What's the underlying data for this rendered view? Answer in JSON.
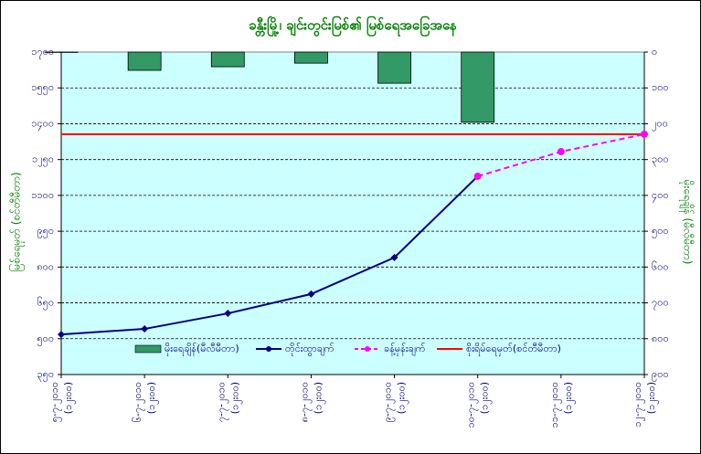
{
  "chart_data": {
    "type": "combo",
    "title": "ခန္တီးမြို့၊ ချင်းတွင်းမြစ်၏ မြစ်ရေအခြေအနေ",
    "ylabel": "မြစ်ရေမှတ် (စင်တီမီတာ)",
    "y2label": "မိုးရေချိန် (မီလီမီတာ)",
    "categories": [
      "၅-၇-၂၀၁၀ (၁၂း၀၀)",
      "၆-၇-၂၀၁၀ (၁၂း၀၀)",
      "၇-၇-၂၀၁၀ (၁၂း၀၀)",
      "၈-၇-၂၀၁၀ (၁၂း၀၀)",
      "၉-၇-၂၀၁၀ (၁၂း၀၀)",
      "၁၀-၇-၂၀၁၀ (၁၂း၀၀)",
      "၁၁-၇-၂၀၁၀ (၁၂း၀၀)",
      "၁၂-၇-၂၀၁၀ (၁၂း၀၀)"
    ],
    "series": [
      {
        "name": "မိုးရေချိန်(မီလီမီတာ)",
        "kind": "bar",
        "axis": "y2",
        "color": "#339966",
        "values": [
          1,
          51,
          41,
          31,
          87,
          196,
          null,
          null
        ]
      },
      {
        "name": "တိုင်းထွာချက်",
        "kind": "line",
        "marker": "diamond",
        "color": "#000080",
        "values": [
          518,
          541,
          606,
          687,
          840,
          1180,
          null,
          null
        ]
      },
      {
        "name": "ခန့်မှန်းချက်",
        "kind": "line",
        "marker": "circle",
        "dashed": true,
        "color": "#ff00ff",
        "values": [
          null,
          null,
          null,
          null,
          null,
          1180,
          1283,
          1356
        ]
      }
    ],
    "danger_level": {
      "name": "စိုးရိမ်ရေမှတ်(စင်တီမီတာ)",
      "value": 1356,
      "color": "#ff0000"
    },
    "ylim": [
      350,
      1700
    ],
    "yticks": [
      {
        "value": 350,
        "label": "၃၅၀"
      },
      {
        "value": 500,
        "label": "၅၀၀"
      },
      {
        "value": 650,
        "label": "၆၅၀"
      },
      {
        "value": 800,
        "label": "၈၀၀"
      },
      {
        "value": 950,
        "label": "၉၅၀"
      },
      {
        "value": 1100,
        "label": "၁၁၀၀"
      },
      {
        "value": 1250,
        "label": "၁၂၅၀"
      },
      {
        "value": 1400,
        "label": "၁၄၀၀"
      },
      {
        "value": 1550,
        "label": "၁၅၅၀"
      },
      {
        "value": 1700,
        "label": "၁၇၀၀"
      }
    ],
    "y2lim": [
      0,
      900
    ],
    "y2_reversed": true,
    "y2ticks": [
      {
        "value": 0,
        "label": "၀"
      },
      {
        "value": 100,
        "label": "၁၀၀"
      },
      {
        "value": 200,
        "label": "၂၀၀"
      },
      {
        "value": 300,
        "label": "၃၀၀"
      },
      {
        "value": 400,
        "label": "၄၀၀"
      },
      {
        "value": 500,
        "label": "၅၀၀"
      },
      {
        "value": 600,
        "label": "၆၀၀"
      },
      {
        "value": 700,
        "label": "၇၀၀"
      },
      {
        "value": 800,
        "label": "၈၀၀"
      },
      {
        "value": 900,
        "label": "၉၀၀"
      }
    ],
    "grid": true,
    "legend": "bottom"
  }
}
